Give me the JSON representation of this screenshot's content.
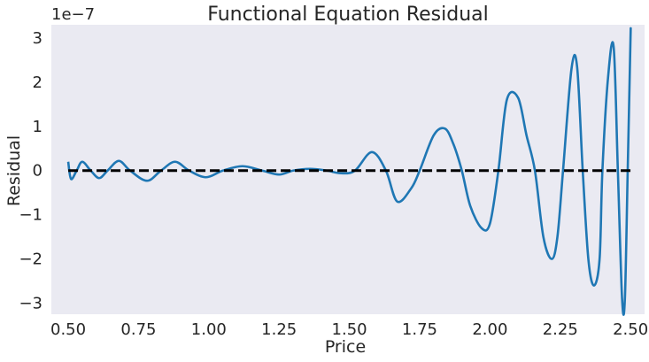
{
  "chart_data": {
    "type": "line",
    "title": "Functional Equation Residual",
    "xlabel": "Price",
    "ylabel": "Residual",
    "y_offset_text": "1e−7",
    "xlim": [
      0.44,
      2.55
    ],
    "ylim": [
      -3.25e-07,
      3.3e-07
    ],
    "grid": false,
    "xticks": [
      0.5,
      0.75,
      1.0,
      1.25,
      1.5,
      1.75,
      2.0,
      2.25,
      2.5
    ],
    "xtick_labels": [
      "0.50",
      "0.75",
      "1.00",
      "1.25",
      "1.50",
      "1.75",
      "2.00",
      "2.25",
      "2.50"
    ],
    "yticks": [
      -3e-07,
      -2e-07,
      -1e-07,
      0,
      1e-07,
      2e-07,
      3e-07
    ],
    "ytick_labels": [
      "−3",
      "−2",
      "−1",
      "0",
      "1",
      "2",
      "3"
    ],
    "series": [
      {
        "color": "#1f77b4",
        "style": "solid",
        "x": [
          0.5,
          0.51,
          0.53,
          0.55,
          0.58,
          0.61,
          0.64,
          0.68,
          0.72,
          0.78,
          0.83,
          0.88,
          0.93,
          0.99,
          1.05,
          1.12,
          1.19,
          1.25,
          1.3,
          1.36,
          1.42,
          1.47,
          1.52,
          1.58,
          1.63,
          1.67,
          1.72,
          1.75,
          1.8,
          1.84,
          1.87,
          1.9,
          1.93,
          1.97,
          2.0,
          2.03,
          2.06,
          2.1,
          2.13,
          2.16,
          2.19,
          2.22,
          2.24,
          2.26,
          2.29,
          2.31,
          2.33,
          2.35,
          2.37,
          2.39,
          2.4,
          2.42,
          2.44,
          2.455,
          2.47,
          2.48,
          2.49,
          2.5,
          2.5
        ],
        "y": [
          2e-08,
          -1.9e-08,
          0,
          2e-08,
          0,
          -1.7e-08,
          0,
          2.2e-08,
          0,
          -2.3e-08,
          0,
          2e-08,
          0,
          -1.5e-08,
          0,
          1e-08,
          0,
          -9e-09,
          0,
          4e-09,
          0,
          -6e-09,
          0,
          4.2e-08,
          0,
          -7e-08,
          -4e-08,
          0,
          8e-08,
          9.5e-08,
          6e-08,
          0,
          -8e-08,
          -1.3e-07,
          -1.2e-07,
          0,
          1.6e-07,
          1.65e-07,
          8e-08,
          0,
          -1.5e-07,
          -2e-07,
          -1.5e-07,
          0,
          2.3e-07,
          2.35e-07,
          0,
          -2e-07,
          -2.6e-07,
          -2e-07,
          0,
          2.1e-07,
          2.8e-07,
          0,
          -2.9e-07,
          -2.9e-07,
          0,
          3e-07,
          3e-07
        ]
      },
      {
        "color": "#000000",
        "style": "dashed",
        "x": [
          0.5,
          2.5
        ],
        "y": [
          0,
          0
        ]
      }
    ]
  }
}
